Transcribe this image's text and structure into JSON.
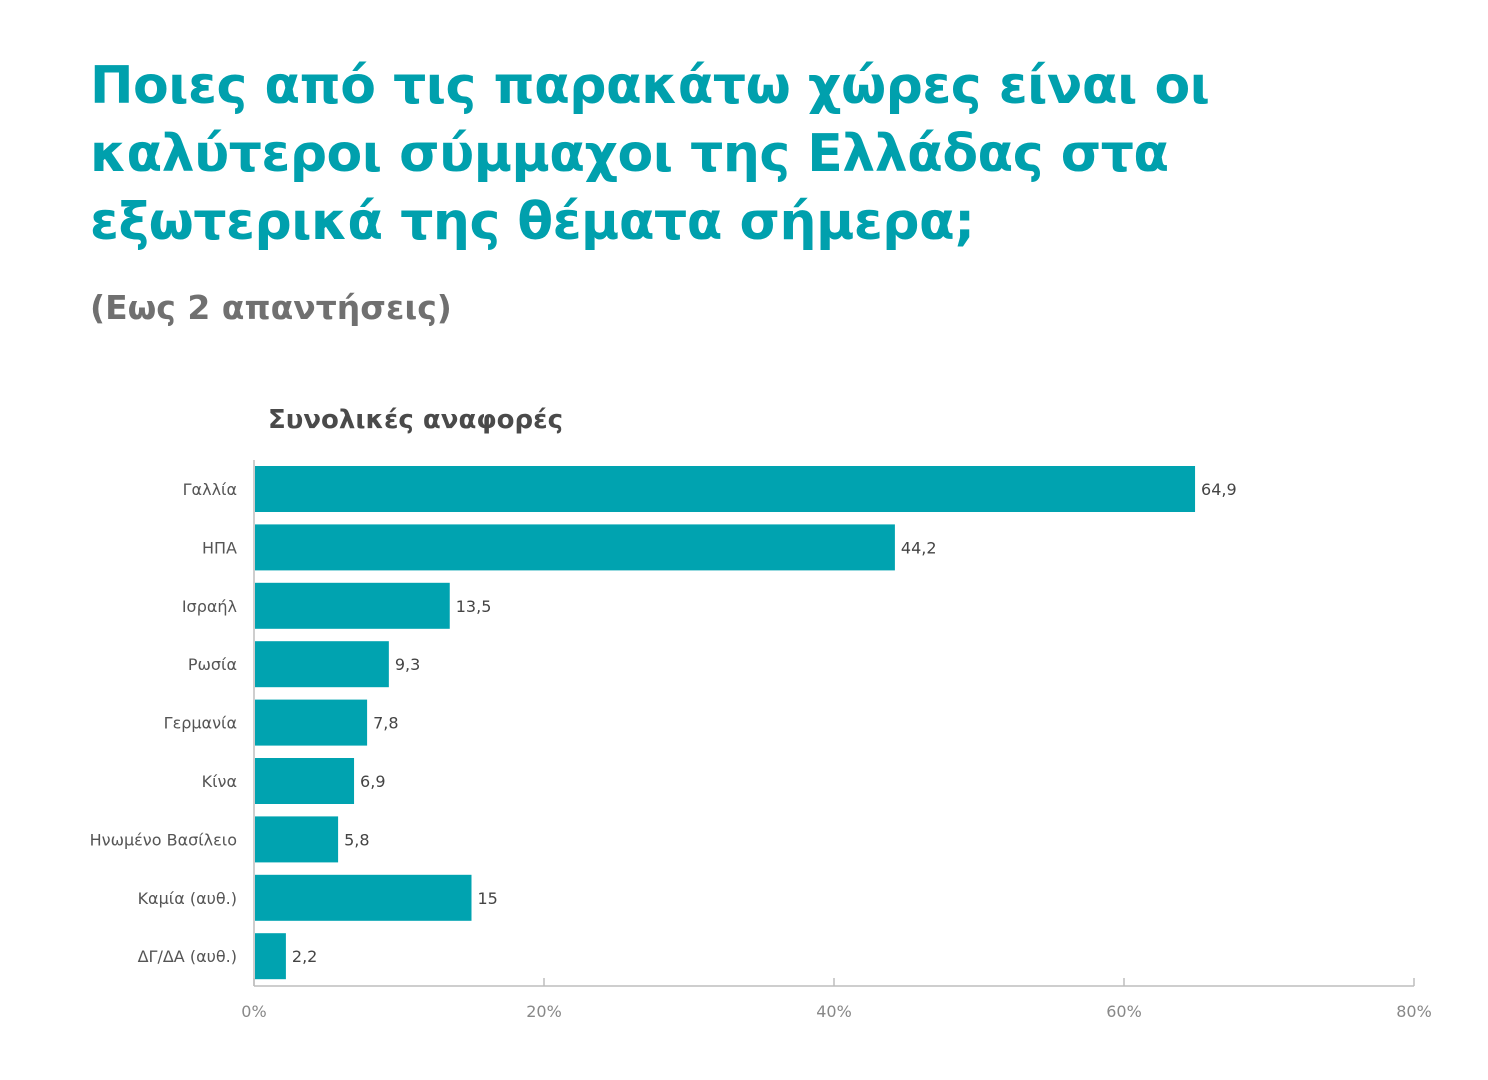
{
  "title": "Ποιες από τις παρακάτω χώρες είναι οι καλύτεροι σύμμαχοι της Ελλάδας στα εξωτερικά της θέματα σήμερα;",
  "subtitle": "(Εως 2 απαντήσεις)",
  "colors": {
    "bar": "#00a3b0",
    "title": "#00a0ad",
    "axis": "#bdbdbd",
    "label": "#555555"
  },
  "chart_data": {
    "type": "bar",
    "orientation": "horizontal",
    "title": "Συνολικές αναφορές",
    "categories": [
      "Γαλλία",
      "ΗΠΑ",
      "Ισραήλ",
      "Ρωσία",
      "Γερμανία",
      "Κίνα",
      "Ηνωμένο Βασίλειο",
      "Καμία (αυθ.)",
      "ΔΓ/ΔΑ (αυθ.)"
    ],
    "values": [
      64.9,
      44.2,
      13.5,
      9.3,
      7.8,
      6.9,
      5.8,
      15,
      2.2
    ],
    "value_labels": [
      "64,9",
      "44,2",
      "13,5",
      "9,3",
      "7,8",
      "6,9",
      "5,8",
      "15",
      "2,2"
    ],
    "x_ticks": [
      0,
      20,
      40,
      60,
      80
    ],
    "x_tick_labels": [
      "0%",
      "20%",
      "40%",
      "60%",
      "80%"
    ],
    "xlim": [
      0,
      80
    ],
    "grid": false,
    "legend": "none"
  }
}
